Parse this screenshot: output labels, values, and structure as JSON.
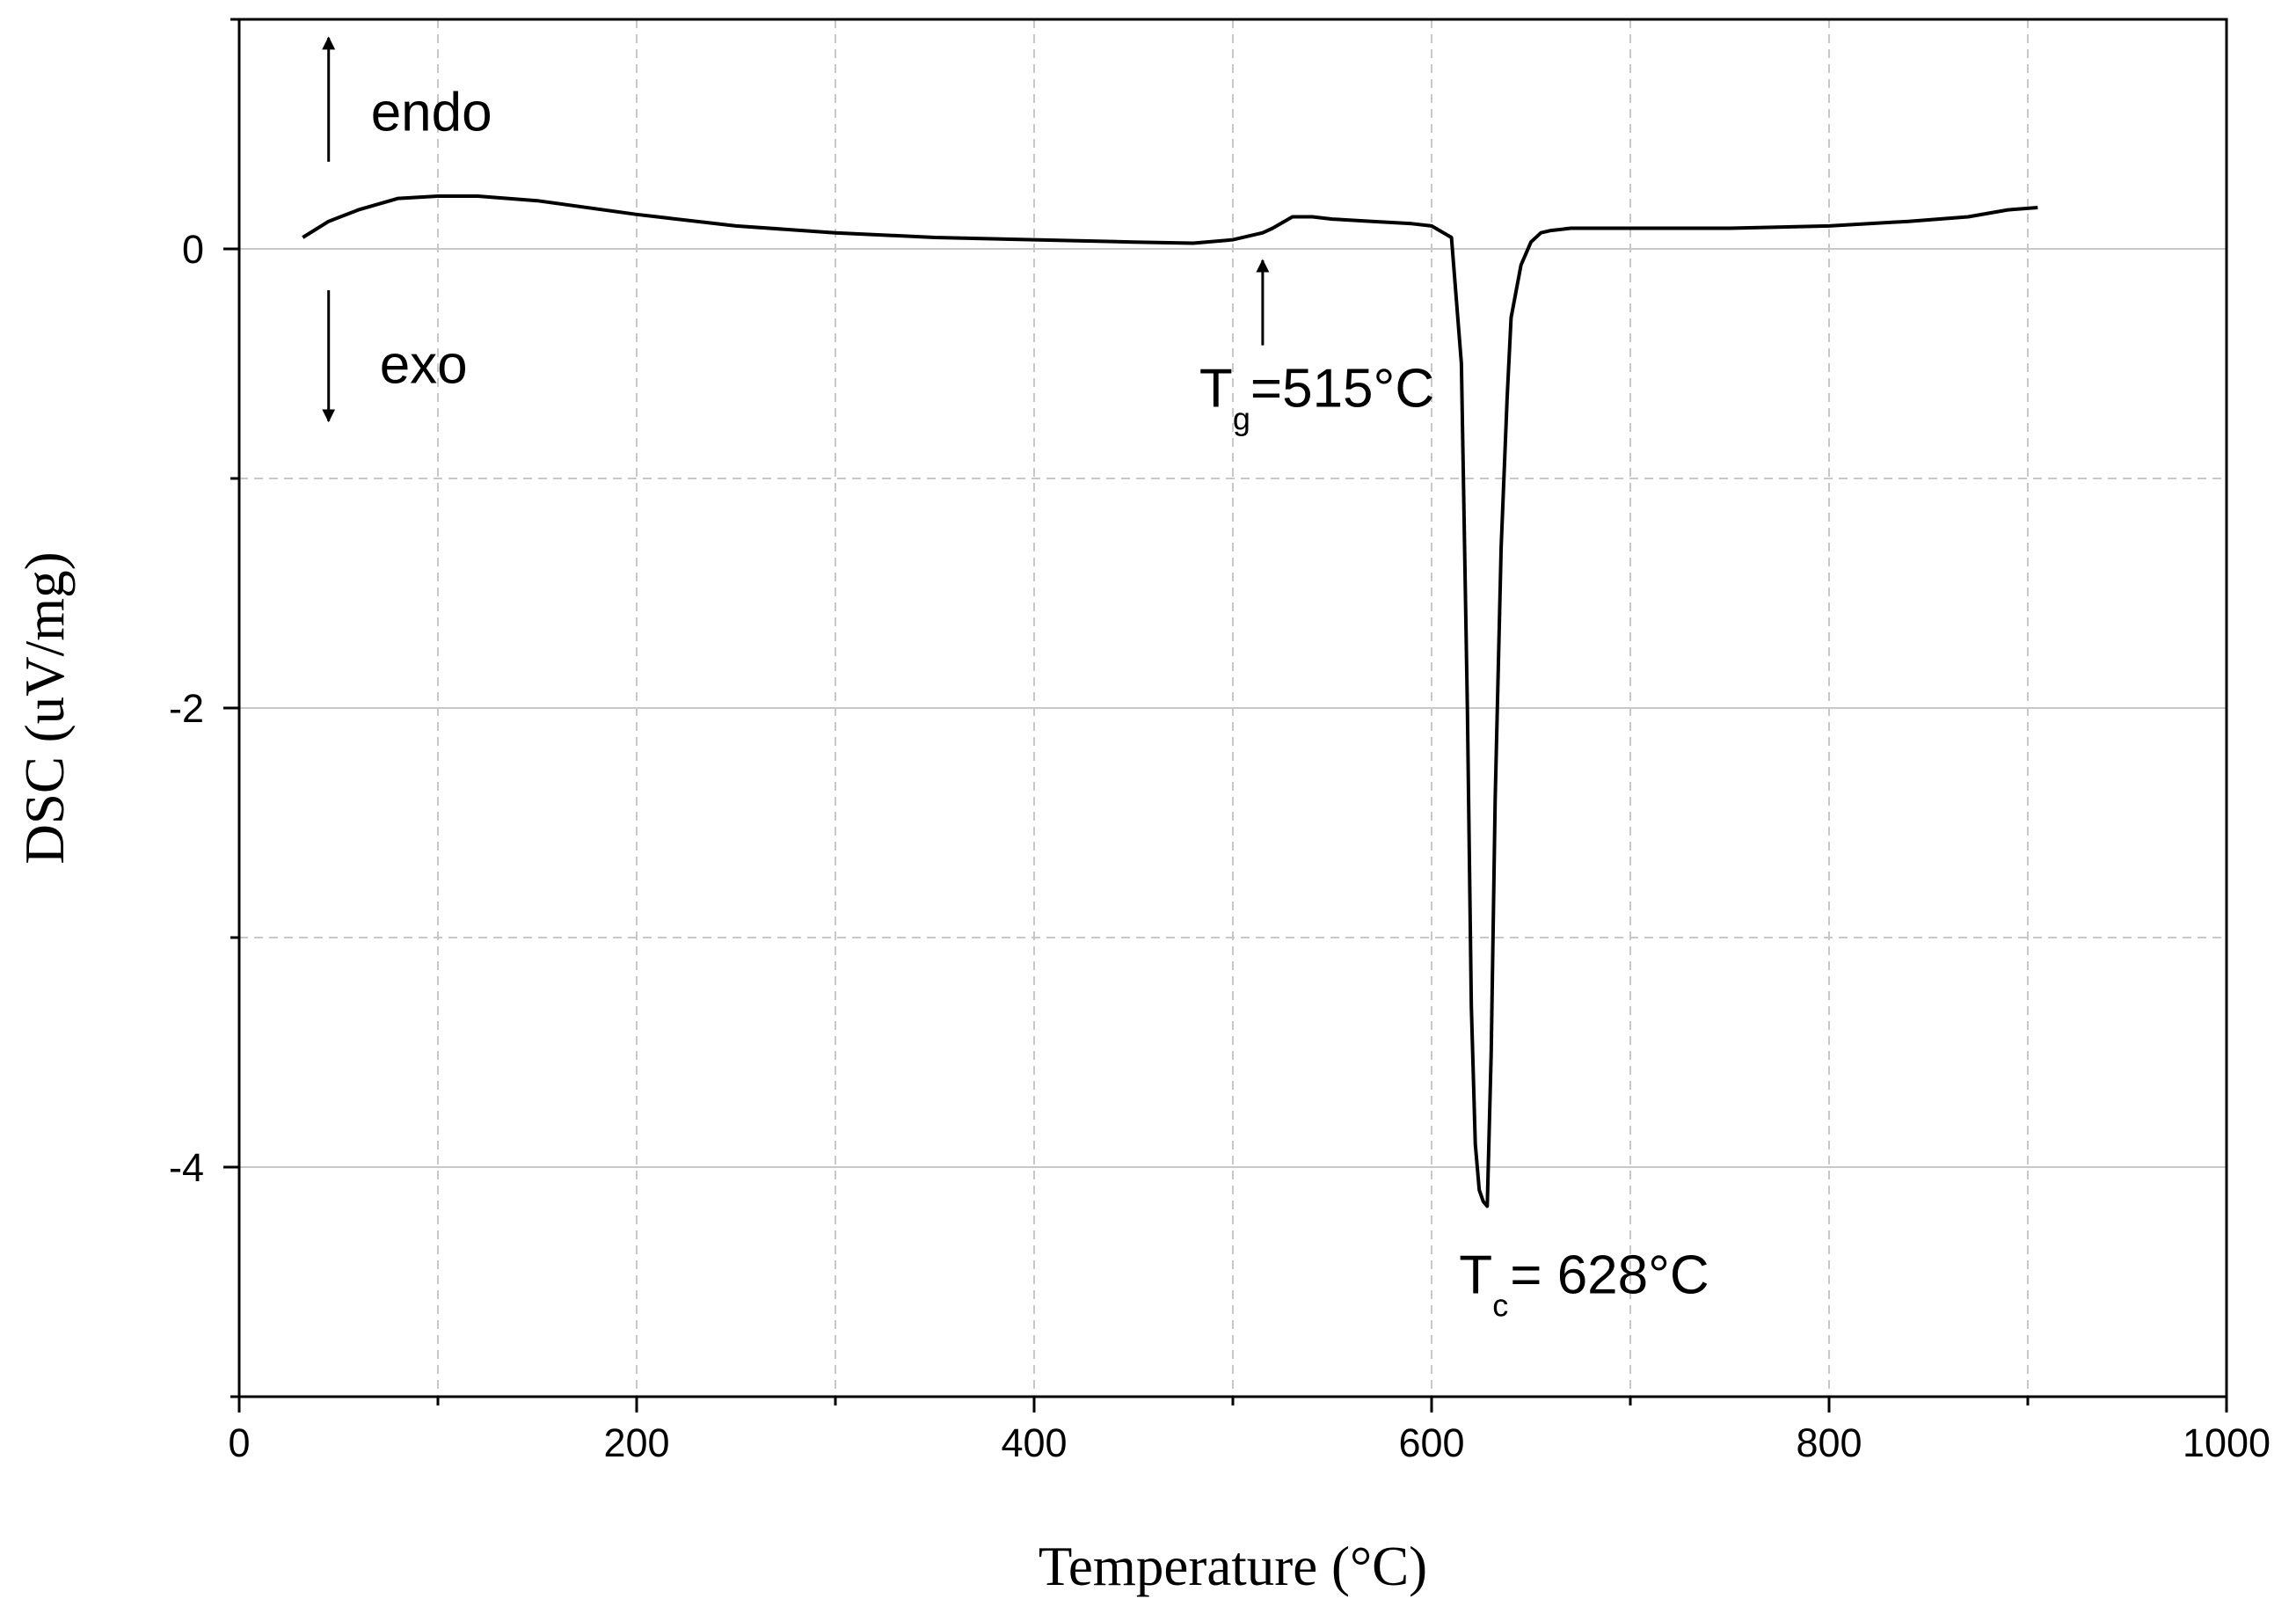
{
  "chart_data": {
    "type": "line",
    "title": "",
    "xlabel": "Temperature (°C)",
    "ylabel": "DSC (uV/mg)",
    "xlim": [
      0,
      1000
    ],
    "ylim": [
      -5,
      1
    ],
    "x_ticks": [
      0,
      200,
      400,
      600,
      800,
      1000
    ],
    "x_tick_labels": [
      "0",
      "200",
      "400",
      "600",
      "800",
      "1000"
    ],
    "y_ticks": [
      -4,
      -2,
      0
    ],
    "y_tick_labels": [
      "-4",
      "-2",
      "0"
    ],
    "grid": true,
    "legend": "none",
    "line_color": "#000000",
    "grid_color": "#c8c8c8",
    "series": [
      {
        "x": [
          32,
          45,
          60,
          80,
          100,
          120,
          150,
          200,
          250,
          300,
          350,
          400,
          450,
          480,
          500,
          510,
          515,
          520,
          530,
          540,
          550,
          570,
          590,
          600,
          610,
          615,
          618,
          620,
          622,
          624,
          626,
          628,
          630,
          632,
          635,
          638,
          640,
          645,
          650,
          655,
          660,
          670,
          700,
          750,
          800,
          840,
          870,
          890,
          905
        ],
        "y": [
          0.05,
          0.12,
          0.17,
          0.22,
          0.23,
          0.23,
          0.21,
          0.15,
          0.1,
          0.07,
          0.05,
          0.04,
          0.03,
          0.025,
          0.04,
          0.06,
          0.07,
          0.09,
          0.14,
          0.14,
          0.13,
          0.12,
          0.11,
          0.1,
          0.05,
          -0.5,
          -2.0,
          -3.3,
          -3.9,
          -4.1,
          -4.15,
          -4.17,
          -3.5,
          -2.4,
          -1.3,
          -0.65,
          -0.3,
          -0.07,
          0.03,
          0.07,
          0.08,
          0.09,
          0.09,
          0.09,
          0.1,
          0.12,
          0.14,
          0.17,
          0.18
        ]
      }
    ],
    "annotations": [
      {
        "label": "endo",
        "direction": "up",
        "x": 45,
        "y": 0.6
      },
      {
        "label": "exo",
        "direction": "down",
        "x": 45,
        "y": -0.5
      },
      {
        "label_main": "T",
        "label_sub": "g",
        "label_rest": "=515°C",
        "x": 515,
        "y": -0.65,
        "arrow_to": [
          515,
          -0.05
        ]
      },
      {
        "label_main": "T",
        "label_sub": "c",
        "label_rest": "= 628°C",
        "x": 628,
        "y": -4.55
      }
    ]
  }
}
